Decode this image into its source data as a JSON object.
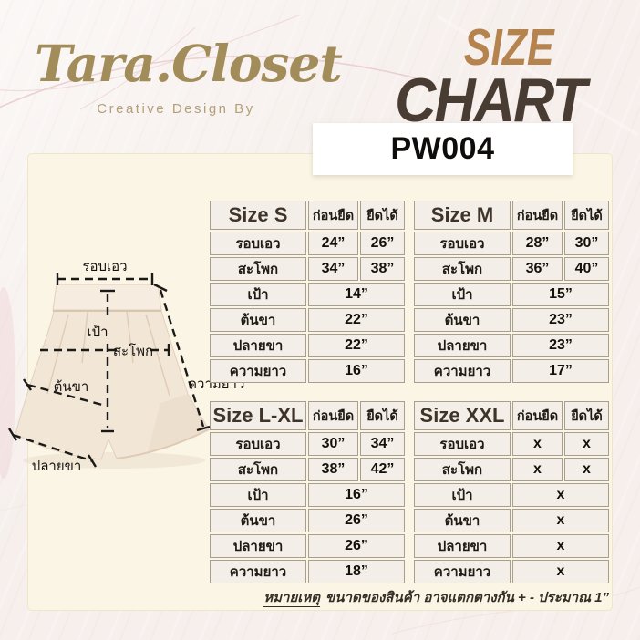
{
  "brand": {
    "logo": "Tara.Closet",
    "tagline": "Creative Design By"
  },
  "header": {
    "size_word": "SIZE",
    "chart_word": "CHART",
    "product_code": "PW004"
  },
  "colors": {
    "size_title": "#b5834d",
    "chart_title": "#493c33",
    "logo_gold": "#a28d5a",
    "panel_cream": "#fbf5e5",
    "table_header_gray": "#c7c4bf",
    "background_pink_white": "#f6efec"
  },
  "diagram": {
    "labels": {
      "waist": "รอบเอว",
      "crotch": "เป้า",
      "hip": "สะโพก",
      "thigh": "ต้นขา",
      "hem": "ปลายขา",
      "length": "ความยาว"
    }
  },
  "size_tables": [
    {
      "size_label": "Size S",
      "col_before": "ก่อนยืด",
      "col_stretch": "ยืดได้",
      "rows": [
        {
          "label": "รอบเอว",
          "values": [
            "24”",
            "26”"
          ]
        },
        {
          "label": "สะโพก",
          "values": [
            "34”",
            "38”"
          ]
        },
        {
          "label": "เป้า",
          "values": [
            "14”"
          ]
        },
        {
          "label": "ต้นขา",
          "values": [
            "22”"
          ]
        },
        {
          "label": "ปลายขา",
          "values": [
            "22”"
          ]
        },
        {
          "label": "ความยาว",
          "values": [
            "16”"
          ]
        }
      ]
    },
    {
      "size_label": "Size M",
      "col_before": "ก่อนยืด",
      "col_stretch": "ยืดได้",
      "rows": [
        {
          "label": "รอบเอว",
          "values": [
            "28”",
            "30”"
          ]
        },
        {
          "label": "สะโพก",
          "values": [
            "36”",
            "40”"
          ]
        },
        {
          "label": "เป้า",
          "values": [
            "15”"
          ]
        },
        {
          "label": "ต้นขา",
          "values": [
            "23”"
          ]
        },
        {
          "label": "ปลายขา",
          "values": [
            "23”"
          ]
        },
        {
          "label": "ความยาว",
          "values": [
            "17”"
          ]
        }
      ]
    },
    {
      "size_label": "Size L-XL",
      "col_before": "ก่อนยืด",
      "col_stretch": "ยืดได้",
      "rows": [
        {
          "label": "รอบเอว",
          "values": [
            "30”",
            "34”"
          ]
        },
        {
          "label": "สะโพก",
          "values": [
            "38”",
            "42”"
          ]
        },
        {
          "label": "เป้า",
          "values": [
            "16”"
          ]
        },
        {
          "label": "ต้นขา",
          "values": [
            "26”"
          ]
        },
        {
          "label": "ปลายขา",
          "values": [
            "26”"
          ]
        },
        {
          "label": "ความยาว",
          "values": [
            "18”"
          ]
        }
      ]
    },
    {
      "size_label": "Size XXL",
      "col_before": "ก่อนยืด",
      "col_stretch": "ยืดได้",
      "rows": [
        {
          "label": "รอบเอว",
          "values": [
            "x",
            "x"
          ]
        },
        {
          "label": "สะโพก",
          "values": [
            "x",
            "x"
          ]
        },
        {
          "label": "เป้า",
          "values": [
            "x"
          ]
        },
        {
          "label": "ต้นขา",
          "values": [
            "x"
          ]
        },
        {
          "label": "ปลายขา",
          "values": [
            "x"
          ]
        },
        {
          "label": "ความยาว",
          "values": [
            "x"
          ]
        }
      ]
    }
  ],
  "footnote": {
    "prefix": "หมายเหตุ",
    "text": "ขนาดของสินค้า อาจแตกตางกัน + - ประมาณ 1”"
  }
}
